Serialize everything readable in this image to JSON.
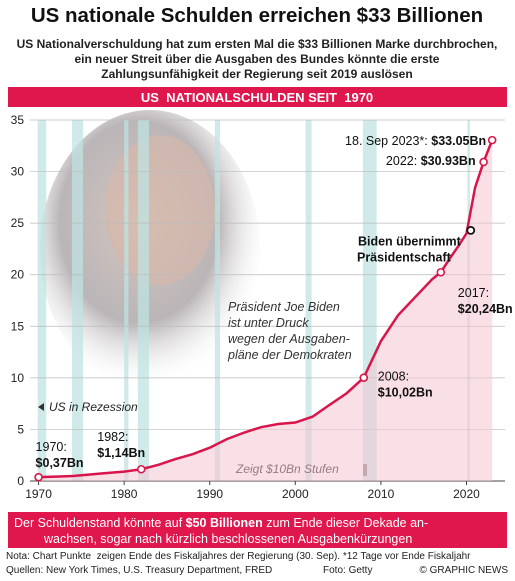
{
  "chart_data": {
    "type": "line",
    "title": "US nationale Schulden erreichen $33 Billionen",
    "subtitle_lines": [
      "US Nationalverschuldung hat zum ersten Mal die $33 Billionen Marke durchbrochen,",
      "ein neuer Streit über die Ausgaben des Bundes könnte die erste",
      "Zahlungsunfähigkeit der Regierung seit 2019 auslösen"
    ],
    "banner": "US  NATIONALSCHULDEN SEIT  1970",
    "x": [
      1970,
      1972,
      1974,
      1976,
      1978,
      1980,
      1982,
      1984,
      1986,
      1988,
      1990,
      1992,
      1994,
      1996,
      1998,
      2000,
      2002,
      2004,
      2006,
      2008,
      2010,
      2012,
      2014,
      2016,
      2017,
      2018,
      2019,
      2020,
      2021,
      2022,
      2023
    ],
    "series": [
      {
        "color": "#d9164b",
        "values": [
          0.37,
          0.43,
          0.48,
          0.63,
          0.77,
          0.91,
          1.14,
          1.57,
          2.13,
          2.6,
          3.23,
          4.06,
          4.69,
          5.22,
          5.53,
          5.67,
          6.23,
          7.38,
          8.51,
          10.02,
          13.56,
          16.07,
          17.82,
          19.57,
          20.24,
          21.52,
          22.72,
          24,
          28.43,
          30.93,
          33.05
        ],
        "value_labels": [
          "$0,37Bn",
          null,
          null,
          null,
          null,
          null,
          "$1,14Bn",
          null,
          null,
          null,
          null,
          null,
          null,
          null,
          null,
          null,
          null,
          null,
          null,
          "$10,02Bn",
          null,
          null,
          null,
          null,
          "$20,24Bn",
          null,
          null,
          null,
          null,
          "$30.93Bn",
          "$33.05Bn"
        ],
        "point_labels": [
          "1970:",
          null,
          null,
          null,
          null,
          null,
          "1982:",
          null,
          null,
          null,
          null,
          null,
          null,
          null,
          null,
          null,
          null,
          null,
          null,
          "2008:",
          null,
          null,
          null,
          null,
          "2017:",
          null,
          null,
          null,
          null,
          "2022:",
          "18. Sep 2023*:"
        ]
      }
    ],
    "xlim": [
      1969,
      2024.5
    ],
    "xticks": [
      1970,
      1980,
      1990,
      2000,
      2010,
      2020
    ],
    "ylim": [
      0,
      35
    ],
    "yticks": [
      0,
      5,
      10,
      15,
      20,
      25,
      30,
      35
    ],
    "grid": true,
    "recessions": [
      [
        1969.9,
        1970.9
      ],
      [
        1973.9,
        1975.2
      ],
      [
        1980.0,
        1980.5
      ],
      [
        1981.6,
        1982.9
      ],
      [
        1990.6,
        1991.2
      ],
      [
        2001.2,
        2001.9
      ],
      [
        2007.9,
        2009.5
      ],
      [
        2020.1,
        2020.4
      ]
    ],
    "recession_label": "US in Rezession",
    "biden": {
      "lines": [
        "Biden übernimmt",
        "Präsidentschaft"
      ],
      "x": 2020.5,
      "y": 24.3
    },
    "photo_caption_lines": [
      "Präsident Joe Biden",
      "ist unter Druck",
      "wegen der Ausgaben-",
      "pläne der Demokraten"
    ],
    "step_note": "Zeigt $10Bn Stufen",
    "footer_lines": [
      [
        "Der Schuldenstand könnte auf ",
        "$50 Billionen",
        " zum Ende dieser Dekade an-"
      ],
      [
        "wachsen, sogar nach kürzlich beschlossenen Ausgabenkürzungen"
      ]
    ],
    "notes": [
      "Nota: Chart Punkte  zeigen Ende des Fiskaljahres der Regierung (30. Sep). *12 Tage vor Ende Fiskaljahr",
      "Quellen: New York Times, U.S. Treasury Department, FRED"
    ],
    "photo_credit": "Foto: Getty",
    "copyright": "© GRAPHIC NEWS"
  }
}
